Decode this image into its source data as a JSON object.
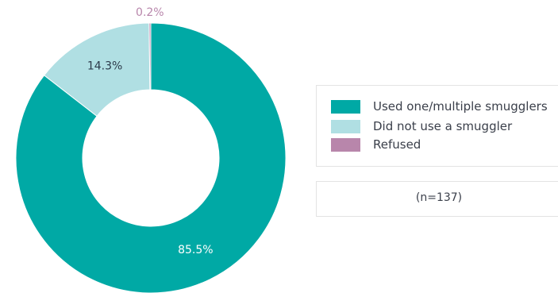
{
  "chart_data": {
    "type": "pie",
    "donut": true,
    "categories": [
      "Used one/multiple smugglers",
      "Did not use a smuggler",
      "Refused"
    ],
    "values": [
      85.5,
      14.3,
      0.2
    ],
    "data_labels": [
      "85.5%",
      "14.3%",
      "0.2%"
    ],
    "colors": [
      "#00a9a5",
      "#b0dfe3",
      "#b886ab"
    ],
    "label_colors": [
      "#ffffff",
      "#2c3a4a",
      "#b886ab"
    ],
    "legend_position": "right",
    "note": "(n=137)"
  }
}
